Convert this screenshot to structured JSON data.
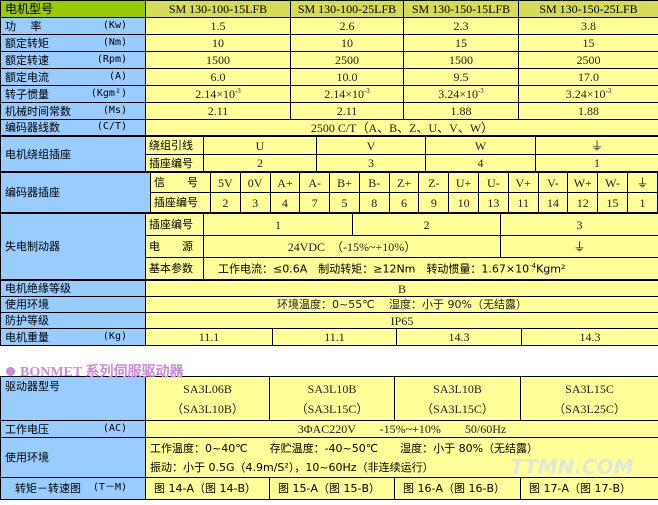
{
  "motor": {
    "header": {
      "label": "电机型号",
      "models": [
        "SM 130-100-15LFB",
        "SM 130-100-25LFB",
        "SM 130-150-15LFB",
        "SM 130-150-25LFB"
      ]
    },
    "rows": [
      {
        "label": "功　 率",
        "unit": "(Kw)",
        "values": [
          "1.5",
          "2.6",
          "2.3",
          "3.8"
        ]
      },
      {
        "label": "额定转矩",
        "unit": "(Nm)",
        "values": [
          "10",
          "10",
          "15",
          "15"
        ]
      },
      {
        "label": "额定转速",
        "unit": "(Rpm)",
        "values": [
          "1500",
          "2500",
          "1500",
          "2500"
        ]
      },
      {
        "label": "额定电流",
        "unit": "(A)",
        "values": [
          "6.0",
          "10.0",
          "9.5",
          "17.0"
        ]
      },
      {
        "label": "转子惯量",
        "unit": "(Kgm²)",
        "values": [
          "2.14×10",
          "2.14×10",
          "3.24×10",
          "3.24×10"
        ],
        "exp": "-3"
      },
      {
        "label": "机械时间常数",
        "unit": "(Ms)",
        "values": [
          "2.11",
          "2.11",
          "1.88",
          "1.88"
        ]
      }
    ],
    "encoder_lines": {
      "label": "编码器线数",
      "unit": "(C/T)",
      "value": "2500 C/T（A、B、Z、U、V、W）"
    },
    "winding": {
      "label": "电机绕组插座",
      "lead_label": "绕组引线",
      "leads": [
        "U",
        "V",
        "W",
        "⏚"
      ],
      "pin_label": "插座编号",
      "pins": [
        "2",
        "3",
        "4",
        "1"
      ]
    },
    "encoder_socket": {
      "label": "编码器插座",
      "signal_label": "信　　号",
      "signals": [
        "5V",
        "0V",
        "A+",
        "A-",
        "B+",
        "B-",
        "Z+",
        "Z-",
        "U+",
        "U-",
        "V+",
        "V-",
        "W+",
        "W-",
        "⏚"
      ],
      "pin_label": "插座编号",
      "pins": [
        "2",
        "3",
        "4",
        "7",
        "5",
        "8",
        "6",
        "9",
        "10",
        "13",
        "11",
        "14",
        "12",
        "15",
        "1"
      ]
    },
    "brake": {
      "label": "失电制动器",
      "pin_label": "插座编号",
      "pins": [
        "1",
        "2",
        "3"
      ],
      "power_label": "电　　源",
      "power": "24VDC　（-15%~+10%）",
      "power_ground": "⏚",
      "params_label": "基本参数",
      "params": "工作电流：≤0.6A　制动转矩：≥12Nm　转动惯量：1.67×10",
      "params_exp": "-4",
      "params_unit": "Kgm²"
    },
    "insulation": {
      "label": "电机绝缘等级",
      "value": "B"
    },
    "environment": {
      "label": "使用环境",
      "value": "环境温度：0~55℃　 湿度：小于 90%（无结露）"
    },
    "protection": {
      "label": "防护等级",
      "value": "IP65"
    },
    "weight": {
      "label": "电机重量",
      "unit": "(Kg)",
      "values": [
        "11.1",
        "11.1",
        "14.3",
        "14.3"
      ]
    }
  },
  "section_title": "BONMET 系列伺服驱动器",
  "driver": {
    "model": {
      "label": "驱动器型号",
      "values": [
        [
          "SA3L06B",
          "（SA3L10B）"
        ],
        [
          "SA3L10B",
          "（SA3L15C）"
        ],
        [
          "SA3L10B",
          "（SA3L15C）"
        ],
        [
          "SA3L15C",
          "（SA3L25C）"
        ]
      ]
    },
    "voltage": {
      "label": "工作电压",
      "unit": "(AC)",
      "value": "3ΦAC220V　　-15%~+10%　　50/60Hz"
    },
    "environment": {
      "label": "使用环境",
      "line1": "工作温度：0~40℃　　存贮温度：-40~50℃　　湿度：小于 80%（无结露）",
      "line2": "振动：小于 0.5G（4.9m/S²），10~60Hz（非连续运行）"
    },
    "torque": {
      "label": "转矩－转速图",
      "unit": "(T－M)",
      "values": [
        "图 14-A（图 14-B）",
        "图 15-A（图 15-B）",
        "图 16-A（图 16-B）",
        "图 17-A（图 17-B）"
      ]
    }
  },
  "watermark": "TTMN.COM",
  "colors": {
    "label_bg": "#99ccff",
    "value_bg": "#ffff99",
    "header_first": "#99cc00",
    "header": "#d4dc5a",
    "title": "#cc88dd"
  }
}
